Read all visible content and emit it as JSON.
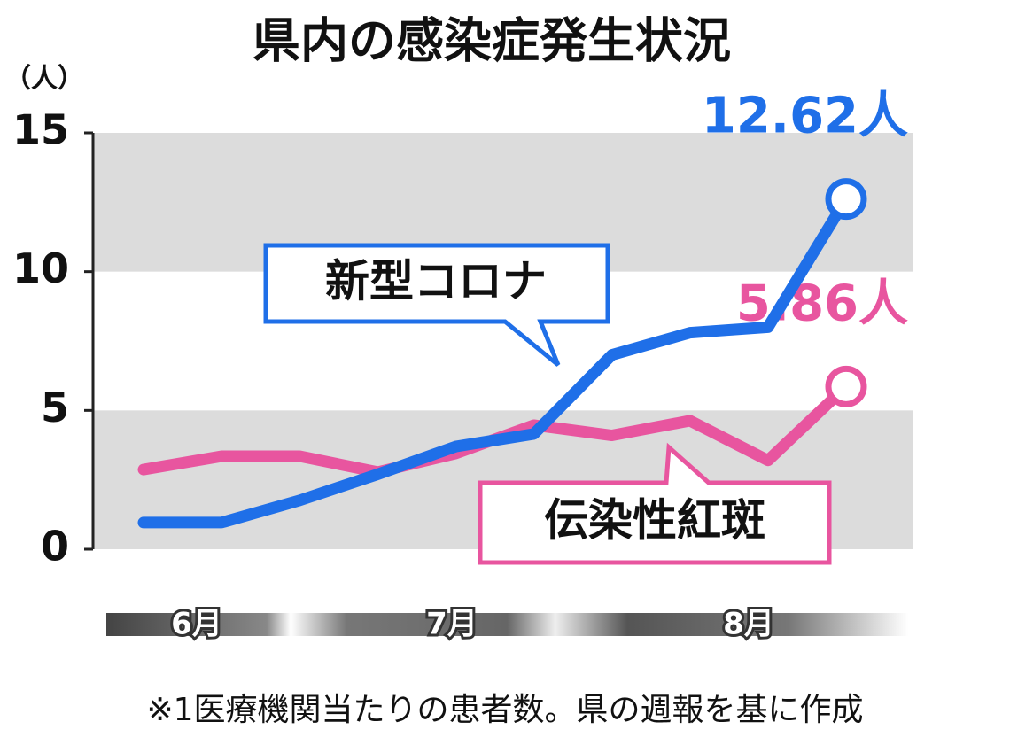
{
  "chart_data": {
    "type": "line",
    "title": "県内の感染症発生状況",
    "y_unit": "（人）",
    "categories": [
      null,
      null,
      null,
      null,
      null,
      null,
      null,
      null,
      null,
      null
    ],
    "month_labels": [
      "6月",
      "7月",
      "8月"
    ],
    "series": [
      {
        "name": "新型コロナ",
        "color": "#1f6fe8",
        "values": [
          0.96,
          0.96,
          1.76,
          2.7,
          3.7,
          4.15,
          7.0,
          7.8,
          8.0,
          12.62
        ],
        "value_labels": [
          null,
          null,
          null,
          null,
          null,
          null,
          null,
          null,
          null,
          "12.62人"
        ]
      },
      {
        "name": "伝染性紅斑",
        "color": "#e8559f",
        "values": [
          2.87,
          3.35,
          3.35,
          2.78,
          3.45,
          4.47,
          4.1,
          4.63,
          3.2,
          5.86
        ],
        "value_labels": [
          null,
          null,
          null,
          null,
          null,
          null,
          null,
          null,
          null,
          "5.86人"
        ]
      }
    ],
    "ylim": [
      0,
      15
    ],
    "yticks": [
      0,
      5,
      10,
      15
    ],
    "grid": true,
    "note": "※1医療機関当たりの患者数。県の週報を基に作成"
  }
}
